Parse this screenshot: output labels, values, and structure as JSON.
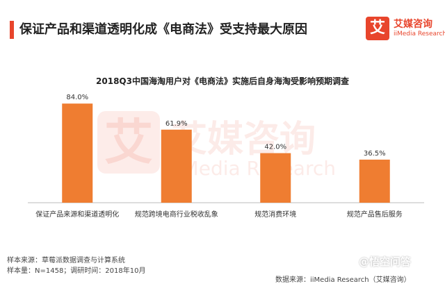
{
  "header": {
    "title": "保证产品和渠道透明化成《电商法》受支持最大原因"
  },
  "logo": {
    "glyph": "艾",
    "cn": "艾媒咨询",
    "en": "iiMedia Research"
  },
  "watermark": {
    "cn": "艾媒咨询",
    "en": "iiMedia Research",
    "glyph": "艾"
  },
  "chart_data": {
    "type": "bar",
    "title": "2018Q3中国海淘用户对《电商法》实施后自身海淘受影响预期调查",
    "categories": [
      "保证产品来源和渠道透明化",
      "规范跨境电商行业税收乱象",
      "规范消费环境",
      "规范产品售后服务"
    ],
    "values": [
      84.0,
      61.9,
      42.0,
      36.5
    ],
    "value_labels": [
      "84.0%",
      "61.9%",
      "42.0%",
      "36.5%"
    ],
    "ylim": [
      0,
      100
    ],
    "xlabel": "",
    "ylabel": "",
    "grid": false,
    "color": "#ef7d31",
    "axis_color": "#bbbbbb"
  },
  "footer": {
    "sample_source": "样本来源：草莓派数据调查与计算系统",
    "sample_size": "样本量：N=1458；调研时间：2018年10月",
    "data_source": "数据来源：iiMedia Research（艾媒咨询）",
    "platform_watermark": "@悟空问答"
  }
}
